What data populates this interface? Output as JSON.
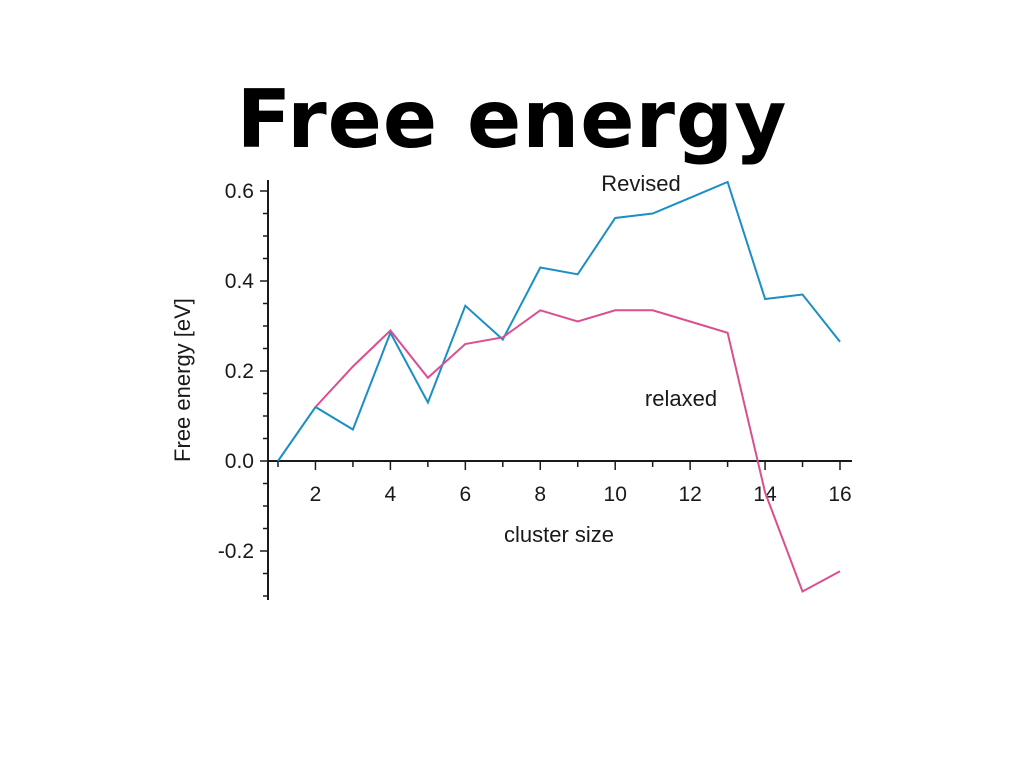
{
  "slide": {
    "title": "Free energy"
  },
  "chart_data": {
    "type": "line",
    "xlabel": "cluster size",
    "ylabel": "Free energy [eV]",
    "xlim": [
      1,
      16
    ],
    "ylim": [
      -0.31,
      0.64
    ],
    "x_ticks": [
      2,
      4,
      6,
      8,
      10,
      12,
      14,
      16
    ],
    "y_ticks": [
      -0.2,
      0.0,
      0.2,
      0.4,
      0.6
    ],
    "y_tick_labels": [
      "-0.2",
      "0.0",
      "0.2",
      "0.4",
      "0.6"
    ],
    "grid": false,
    "series": [
      {
        "name": "Revised",
        "color": "#1a8fc4",
        "x": [
          1,
          2,
          3,
          4,
          5,
          6,
          7,
          8,
          9,
          10,
          11,
          12,
          13,
          14,
          15,
          16
        ],
        "y": [
          0.0,
          0.12,
          0.07,
          0.285,
          0.13,
          0.345,
          0.27,
          0.43,
          0.415,
          0.54,
          0.55,
          0.585,
          0.62,
          0.36,
          0.37,
          0.265
        ]
      },
      {
        "name": "relaxed",
        "color": "#d94f8f",
        "x": [
          2,
          3,
          4,
          5,
          6,
          7,
          8,
          9,
          10,
          11,
          12,
          13,
          14,
          15,
          16
        ],
        "y": [
          0.12,
          0.21,
          0.29,
          0.185,
          0.26,
          0.275,
          0.335,
          0.31,
          0.335,
          0.335,
          0.31,
          0.285,
          -0.07,
          -0.29,
          -0.245
        ]
      }
    ]
  }
}
